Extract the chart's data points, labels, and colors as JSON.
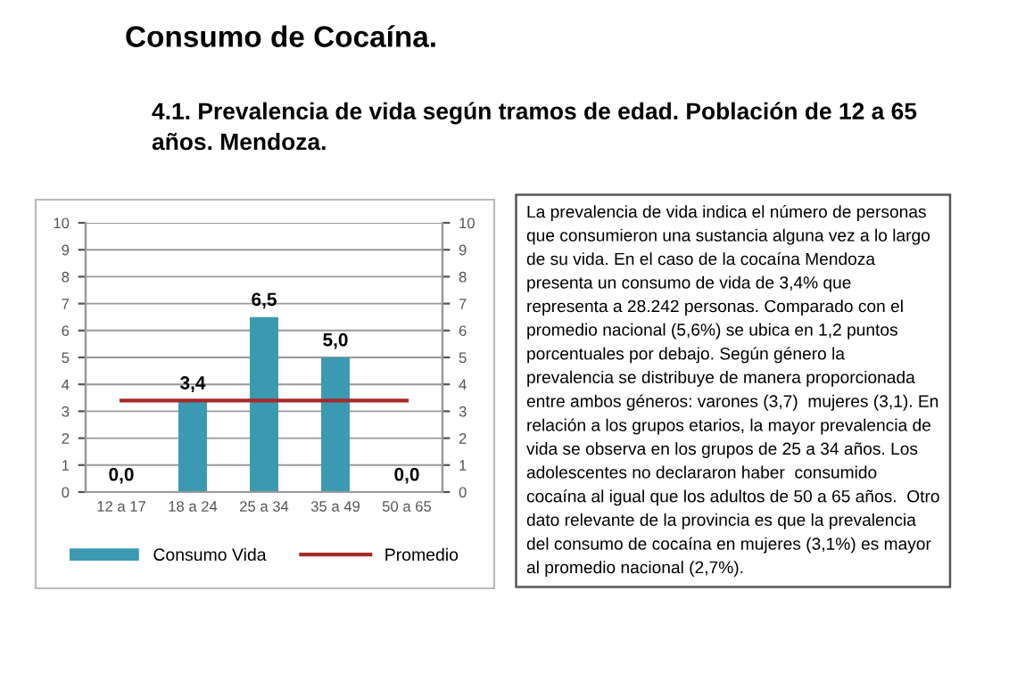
{
  "chart_data": {
    "type": "bar",
    "title": "Consumo de Cocaína.",
    "subtitle": "4.1. Prevalencia de vida según tramos de edad. Población de 12 a 65\naños. Mendoza.",
    "categories": [
      "12 a 17",
      "18 a 24",
      "25 a 34",
      "35 a 49",
      "50 a 65"
    ],
    "series": [
      {
        "name": "Consumo Vida",
        "color": "#3b9ab2",
        "values": [
          0.0,
          3.4,
          6.5,
          5.0,
          0.0
        ],
        "value_labels": [
          "0,0",
          "3,4",
          "6,5",
          "5,0",
          "0,0"
        ]
      },
      {
        "name": "Promedio",
        "type": "line",
        "color": "#a52a2a",
        "values": [
          3.4,
          3.4,
          3.4,
          3.4,
          3.4
        ]
      }
    ],
    "ylim": [
      0,
      10
    ],
    "yticks": [
      0,
      1,
      2,
      3,
      4,
      5,
      6,
      7,
      8,
      9,
      10
    ],
    "y2lim": [
      0,
      10
    ],
    "y2ticks": [
      0,
      1,
      2,
      3,
      4,
      5,
      6,
      7,
      8,
      9,
      10
    ],
    "grid": "y",
    "legend": "bottom",
    "marker": "none",
    "line_style": "solid",
    "annotations": [
      "La prevalencia de vida indica el número de personas\nque consumieron una sustancia alguna vez a lo largo\nde su vida. En el caso de la cocaína Mendoza\npresenta un consumo de vida de 3,4% que\nrepresenta a 28.242 personas. Comparado con el\npromedio nacional (5,6%) se ubica en 1,2 puntos\nporcentuales por debajo. Según género la\nprevalencia se distribuye de manera proporcionada\nentre ambos géneros: varones (3,7)  mujeres (3,1). En\nrelación a los grupos etarios, la mayor prevalencia de\nvida se observa en los grupos de 25 a 34 años. Los\nadolescentes no declararon haber  consumido\ncocaína al igual que los adultos de 50 a 65 años.  Otro\ndato relevante de la provincia es que la prevalencia\ndel consumo de cocaína en mujeres (3,1%) es mayor\nal promedio nacional (2,7%)."
    ]
  }
}
